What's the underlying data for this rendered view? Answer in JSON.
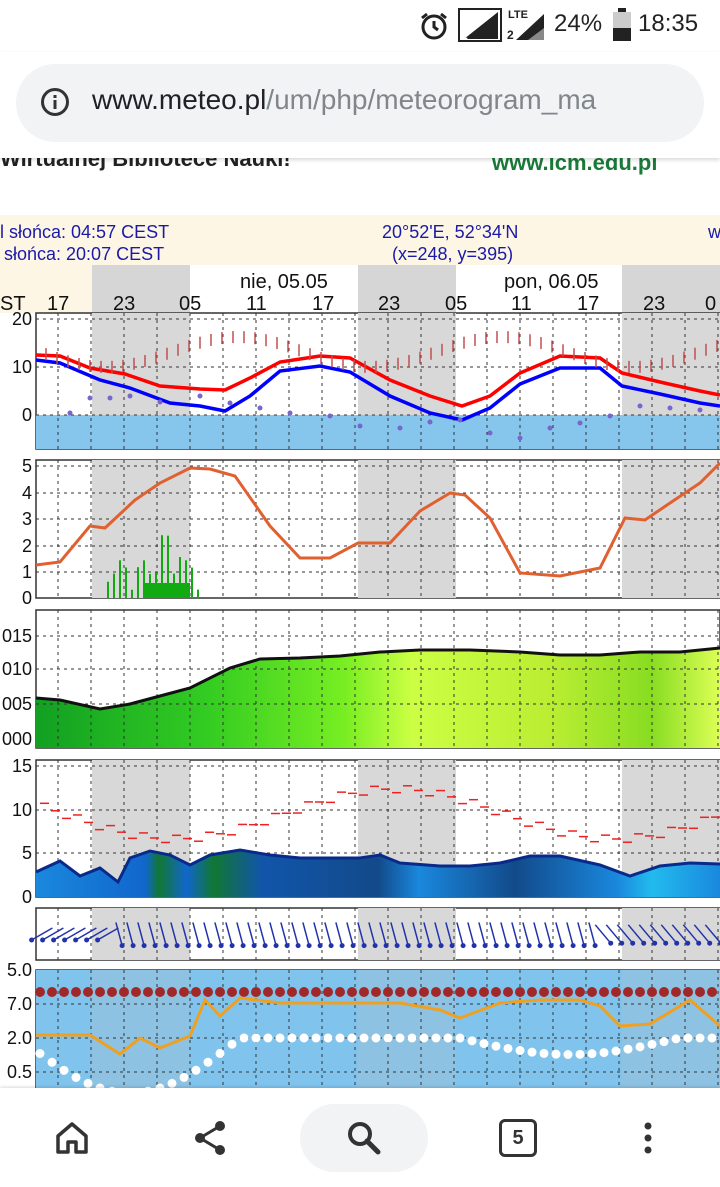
{
  "status_bar": {
    "battery": "24%",
    "time": "18:35",
    "network": "LTE",
    "sim1": "1",
    "sim2": "2",
    "icons": [
      "alarm-icon",
      "sim1-signal-icon",
      "lte-signal-icon",
      "battery-icon"
    ]
  },
  "browser": {
    "url_host": "www.meteo.pl",
    "url_path": "/um/php/meteorogram_ma",
    "tab_count": "5",
    "icons": [
      "info-icon",
      "home-icon",
      "share-icon",
      "search-icon",
      "tabs-icon",
      "more-icon"
    ]
  },
  "header": {
    "cut_text_left": "Wirtualnej Bibliotece Nauki!",
    "cut_text_right": "www.icm.edu.pl",
    "sunrise": "l słońca: 04:57 CEST",
    "sunset": "słońca: 20:07 CEST",
    "coords": "20°52'E, 52°34'N",
    "grid": "(x=248,  y=395)",
    "right_cut": "w"
  },
  "timeline": {
    "day1": "nie, 05.05",
    "day2": "pon, 06.05",
    "tz_cut": "ST",
    "hours": [
      "17",
      "23",
      "05",
      "11",
      "17",
      "23",
      "05",
      "11",
      "17",
      "23",
      "0"
    ]
  },
  "panels": {
    "temperature_ticks": [
      "20",
      "10",
      "0"
    ],
    "precip_ticks": [
      "5",
      "4",
      "3",
      "2",
      "1",
      "0"
    ],
    "pressure_ticks": [
      "015",
      "010",
      "005",
      "000"
    ],
    "wind_ticks": [
      "15",
      "10",
      "5",
      "0"
    ],
    "visibility_ticks": [
      "5.0",
      "7.0",
      "2.0",
      "0.5"
    ]
  },
  "colors": {
    "temp_line": "#ff0000",
    "dew_line": "#0000ff",
    "precip_line": "#e06030",
    "pressure_line": "#111111",
    "wind_gust": "#ee2222",
    "wind_speed": "#0a2a8a",
    "vis_line": "#f0a020"
  }
}
